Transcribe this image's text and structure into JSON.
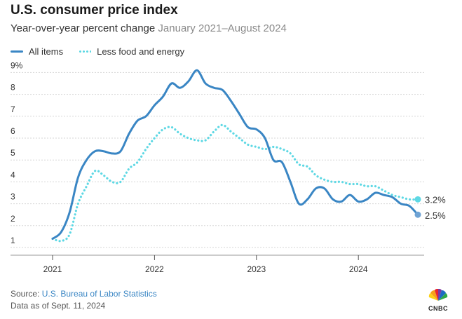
{
  "header": {
    "title": "U.S. consumer price index",
    "subtitle": "Year-over-year percent change",
    "subtitle_range": "January 2021–August 2024"
  },
  "footer": {
    "source_label": "Source: ",
    "source_name": "U.S. Bureau of Labor Statistics",
    "date_note": "Data as of Sept. 11, 2024",
    "logo_text": "CNBC"
  },
  "colors": {
    "all_items": "#3a86c4",
    "core": "#5ed8e4",
    "grid": "#d6d6d6",
    "axis": "#555555"
  },
  "chart_data": {
    "type": "line",
    "x_ticks": [
      "2021",
      "2022",
      "2023",
      "2024"
    ],
    "y_ticks": [
      "1",
      "2",
      "3",
      "4",
      "5",
      "6",
      "7",
      "8",
      "9%"
    ],
    "ylim": [
      1,
      9
    ],
    "x_range": [
      "2021-01",
      "2024-08"
    ],
    "grid": "horizontal",
    "legend_position": "top-left",
    "end_labels": [
      "2.5%",
      "3.2%"
    ],
    "x": [
      "2021-01",
      "2021-02",
      "2021-03",
      "2021-04",
      "2021-05",
      "2021-06",
      "2021-07",
      "2021-08",
      "2021-09",
      "2021-10",
      "2021-11",
      "2021-12",
      "2022-01",
      "2022-02",
      "2022-03",
      "2022-04",
      "2022-05",
      "2022-06",
      "2022-07",
      "2022-08",
      "2022-09",
      "2022-10",
      "2022-11",
      "2022-12",
      "2023-01",
      "2023-02",
      "2023-03",
      "2023-04",
      "2023-05",
      "2023-06",
      "2023-07",
      "2023-08",
      "2023-09",
      "2023-10",
      "2023-11",
      "2023-12",
      "2024-01",
      "2024-02",
      "2024-03",
      "2024-04",
      "2024-05",
      "2024-06",
      "2024-07",
      "2024-08"
    ],
    "series": [
      {
        "name": "All items",
        "style": "solid",
        "values": [
          1.4,
          1.7,
          2.6,
          4.2,
          5.0,
          5.4,
          5.4,
          5.3,
          5.4,
          6.2,
          6.8,
          7.0,
          7.5,
          7.9,
          8.5,
          8.3,
          8.6,
          9.1,
          8.5,
          8.3,
          8.2,
          7.7,
          7.1,
          6.5,
          6.4,
          6.0,
          5.0,
          4.9,
          4.0,
          3.0,
          3.2,
          3.7,
          3.7,
          3.2,
          3.1,
          3.4,
          3.1,
          3.2,
          3.5,
          3.4,
          3.3,
          3.0,
          2.9,
          2.5
        ]
      },
      {
        "name": "Less food and energy",
        "style": "dotted",
        "values": [
          1.4,
          1.3,
          1.6,
          3.0,
          3.8,
          4.5,
          4.3,
          4.0,
          4.0,
          4.6,
          4.9,
          5.5,
          6.0,
          6.4,
          6.5,
          6.2,
          6.0,
          5.9,
          5.9,
          6.3,
          6.6,
          6.3,
          6.0,
          5.7,
          5.6,
          5.5,
          5.6,
          5.5,
          5.3,
          4.8,
          4.7,
          4.3,
          4.1,
          4.0,
          4.0,
          3.9,
          3.9,
          3.8,
          3.8,
          3.6,
          3.4,
          3.3,
          3.2,
          3.2
        ]
      }
    ]
  }
}
